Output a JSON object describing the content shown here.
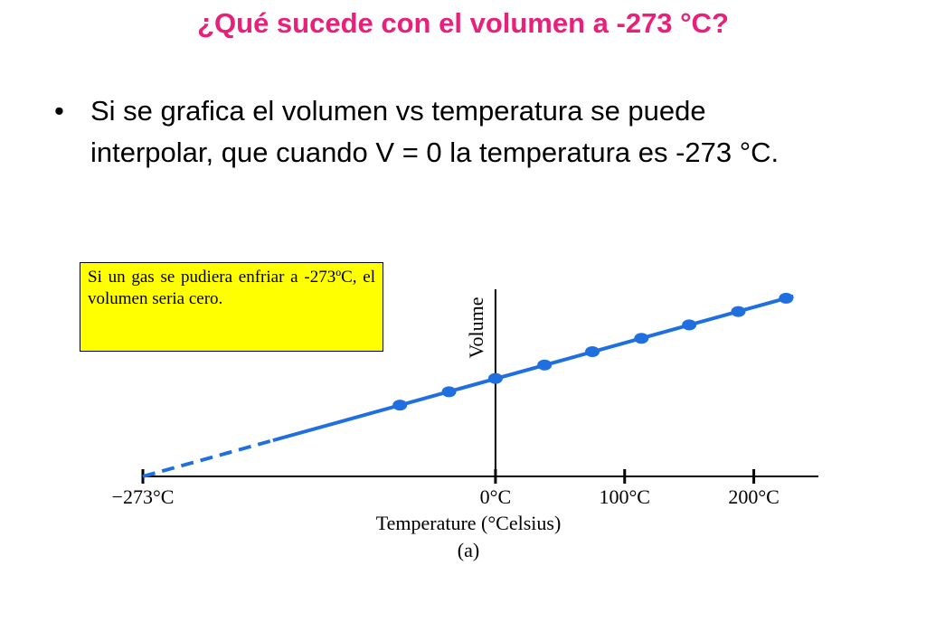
{
  "title": "¿Qué sucede con el volumen a -273 °C?",
  "bullet": "Si se grafica el volumen vs temperatura  se puede interpolar, que cuando V = 0 la temperatura es -273 °C.",
  "note": "Si un gas se pudiera enfriar a -273ºC, el volumen seria cero.",
  "chart_data": {
    "type": "scatter",
    "ylabel": "Volume",
    "xlabel": "Temperature (°Celsius)",
    "caption": "(a)",
    "x": [
      -74,
      -36,
      0,
      38,
      75,
      113,
      150,
      188,
      225
    ],
    "values": [
      80,
      95,
      110,
      125,
      140,
      155,
      170,
      185,
      200
    ],
    "color": "#1f6fe0",
    "xlim": [
      -273,
      250
    ],
    "ylim": [
      0,
      210
    ],
    "xticks": [
      {
        "value": -273,
        "label": "−273°C"
      },
      {
        "value": 0,
        "label": "0°C"
      },
      {
        "value": 100,
        "label": "100°C"
      },
      {
        "value": 200,
        "label": "200°C"
      }
    ]
  }
}
